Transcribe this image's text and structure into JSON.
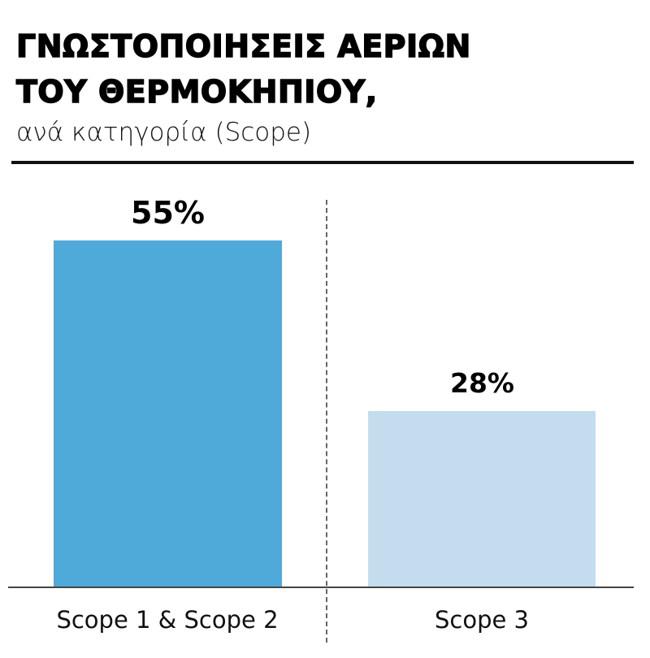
{
  "header": {
    "title_line1": "ΓΝΩΣΤΟΠΟΙΗΣΕΙΣ ΑΕΡΙΩΝ",
    "title_line2": "ΤΟΥ ΘΕΡΜΟΚΗΠΙΟΥ,",
    "subtitle": "ανά κατηγορία (Scope)"
  },
  "bars": [
    {
      "label": "Scope 1 & Scope 2",
      "value_label": "55%",
      "color": "#4FAADA"
    },
    {
      "label": "Scope 3",
      "value_label": "28%",
      "color": "#C3DDEF"
    }
  ],
  "chart_data": {
    "type": "bar",
    "title": "ΓΝΩΣΤΟΠΟΙΗΣΕΙΣ ΑΕΡΙΩΝ ΤΟΥ ΘΕΡΜΟΚΗΠΙΟΥ,",
    "subtitle": "ανά κατηγορία (Scope)",
    "categories": [
      "Scope 1 & Scope 2",
      "Scope 3"
    ],
    "values": [
      55,
      28
    ],
    "data_labels": [
      "55%",
      "28%"
    ],
    "colors": [
      "#4FAADA",
      "#C3DDEF"
    ],
    "xlabel": "",
    "ylabel": "",
    "ylim": [
      0,
      55
    ],
    "grid": false,
    "legend": "none"
  }
}
